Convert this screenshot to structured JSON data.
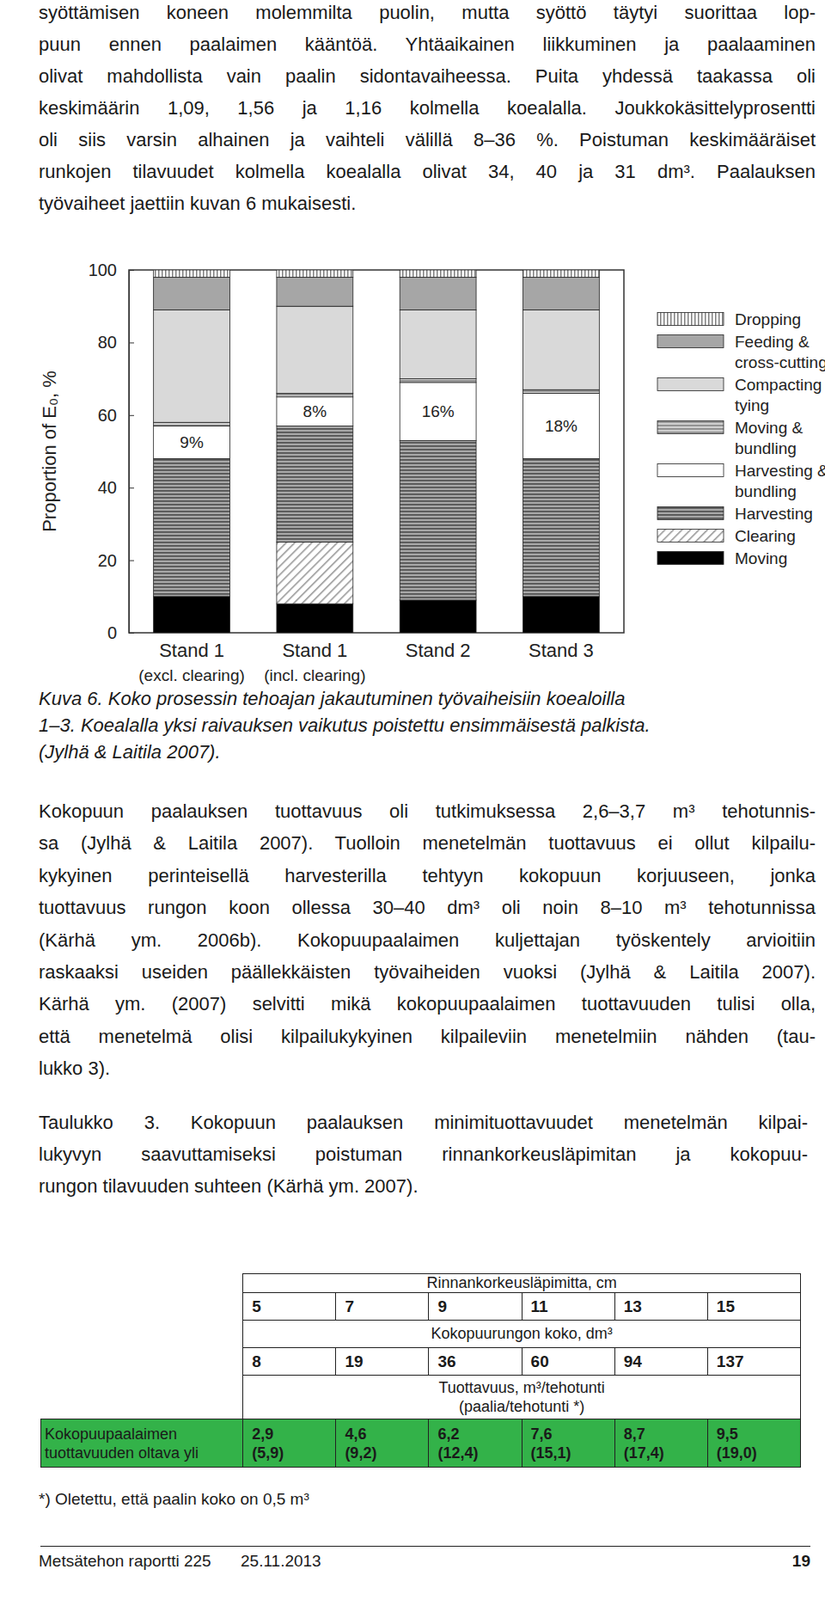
{
  "paragraph_1": {
    "lines": [
      "syöttämisen koneen molemmilta puolin, mutta syöttö täytyi suorittaa lop-",
      "puun ennen paalaimen kääntöä. Yhtäaikainen liikkuminen ja paalaaminen",
      "olivat mahdollista vain paalin sidontavaiheessa. Puita yhdessä taakassa oli",
      "keskimäärin 1,09, 1,56 ja 1,16 kolmella koealalla. Joukkokäsittelyprosentti",
      "oli siis varsin alhainen ja vaihteli välillä 8–36 %. Poistuman keskimääräiset",
      "runkojen tilavuudet kolmella koealalla olivat 34, 40 ja 31 dm³. Paalauksen",
      "työvaiheet jaettiin kuvan 6 mukaisesti."
    ]
  },
  "chart_data": {
    "type": "bar",
    "stacked": true,
    "y_label": "Proportion of E₀, %",
    "categories": [
      "Stand 1\n(excl. clearing)",
      "Stand 1\n(incl. clearing)",
      "Stand 2",
      "Stand 3"
    ],
    "ylim": [
      0,
      100
    ],
    "yticks": [
      0,
      20,
      40,
      60,
      80,
      100
    ],
    "legend": "right",
    "series": [
      {
        "name": "Moving",
        "color": "#000000",
        "values": [
          10,
          8,
          9,
          10
        ]
      },
      {
        "name": "Clearing",
        "color": "#999999",
        "values": [
          0,
          17,
          0,
          0
        ]
      },
      {
        "name": "Harvesting",
        "color": "#555555",
        "values": [
          38,
          32,
          44,
          38
        ]
      },
      {
        "name": "Harvesting & bundling",
        "color": "#ffffff",
        "values": [
          9,
          8,
          16,
          18
        ],
        "data_labels": true,
        "value_labels": [
          "9%",
          "8%",
          "16%",
          "18%"
        ]
      },
      {
        "name": "Moving & bundling",
        "color": "#8c8c8c",
        "values": [
          1,
          1,
          1,
          1
        ]
      },
      {
        "name": "Compacting & tying",
        "color": "#d9d9d9",
        "values": [
          31,
          24,
          19,
          22
        ]
      },
      {
        "name": "Feeding & cross-cutting",
        "color": "#a6a6a6",
        "values": [
          9,
          8,
          9,
          9
        ]
      },
      {
        "name": "Dropping",
        "color": "#808080",
        "values": [
          2,
          2,
          2,
          2
        ]
      }
    ]
  },
  "figure_caption": {
    "lines": [
      "Kuva 6. Koko prosessin tehoajan jakautuminen työvaiheisiin koealoilla",
      "1–3. Koealalla yksi raivauksen vaikutus poistettu ensimmäisestä palkista.",
      "(Jylhä & Laitila 2007)."
    ]
  },
  "paragraph_2": {
    "lines": [
      "Kokopuun paalauksen tuottavuus oli tutkimuksessa 2,6–3,7 m³ tehotunnis-",
      "sa (Jylhä & Laitila 2007). Tuolloin menetelmän tuottavuus ei ollut kilpailu-",
      "kykyinen perinteisellä harvesterilla tehtyyn kokopuun korjuuseen, jonka",
      "tuottavuus rungon koon ollessa 30–40 dm³ oli noin 8–10 m³ tehotunnissa",
      "(Kärhä ym. 2006b). Kokopuupaalaimen kuljettajan työskentely arvioitiin",
      "raskaaksi useiden päällekkäisten työvaiheiden vuoksi (Jylhä & Laitila 2007).",
      "Kärhä ym. (2007) selvitti mikä kokopuupaalaimen tuottavuuden tulisi olla,",
      "että menetelmä olisi kilpailukykyinen kilpaileviin menetelmiin nähden (tau-",
      "lukko 3)."
    ]
  },
  "table_caption": {
    "lines": [
      "Taulukko 3. Kokopuun paalauksen minimituottavuudet menetelmän kilpai-",
      "lukyvyn saavuttamiseksi poistuman rinnankorkeusläpimitan ja kokopuu-",
      "rungon tilavuuden suhteen (Kärhä ym. 2007)."
    ]
  },
  "table": {
    "dbh_header": "Rinnankorkeusläpimitta, cm",
    "dbh": [
      "5",
      "7",
      "9",
      "11",
      "13",
      "15"
    ],
    "size_header": "Kokopuurungon koko, dm³",
    "size": [
      "8",
      "19",
      "36",
      "60",
      "94",
      "137"
    ],
    "productivity_header": [
      "Tuottavuus, m³/tehotunti",
      "(paalia/tehotunti *)"
    ],
    "row_label": [
      "Kokopuupaalaimen",
      "tuottavuuden oltava yli"
    ],
    "productivity": [
      "2,9",
      "4,6",
      "6,2",
      "7,6",
      "8,7",
      "9,5"
    ],
    "bales": [
      "(5,9)",
      "(9,2)",
      "(12,4)",
      "(15,1)",
      "(17,4)",
      "(19,0)"
    ]
  },
  "footnote": "*) Oletettu, että paalin koko on 0,5 m³",
  "footer": {
    "report": "Metsätehon raportti 225",
    "date": "25.11.2013",
    "page": "19"
  }
}
